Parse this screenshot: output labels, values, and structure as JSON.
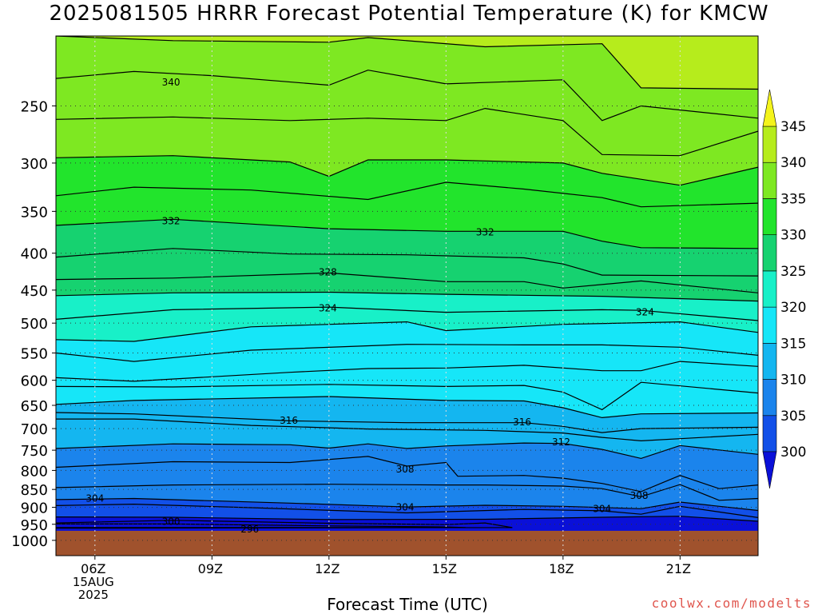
{
  "title": "2025081505 HRRR Forecast Potential Temperature (K) for KMCW",
  "xlabel": "Forecast Time (UTC)",
  "credit": "coolwx.com/modelts",
  "chart_data": {
    "type": "contour",
    "title": "2025081505 HRRR Forecast Potential Temperature (K) for KMCW",
    "xlabel": "Forecast Time (UTC)",
    "ylabel": "",
    "x_ticks": [
      {
        "hour": 6,
        "lines": [
          "06Z",
          "15AUG",
          "2025"
        ]
      },
      {
        "hour": 9,
        "lines": [
          "09Z"
        ]
      },
      {
        "hour": 12,
        "lines": [
          "12Z"
        ]
      },
      {
        "hour": 15,
        "lines": [
          "15Z"
        ]
      },
      {
        "hour": 18,
        "lines": [
          "18Z"
        ]
      },
      {
        "hour": 21,
        "lines": [
          "21Z"
        ]
      }
    ],
    "xlim": [
      5,
      23
    ],
    "y_ticks": [
      250,
      300,
      350,
      400,
      450,
      500,
      550,
      600,
      650,
      700,
      750,
      800,
      850,
      900,
      950,
      1000
    ],
    "ylim": [
      1050,
      200
    ],
    "y_scale": "log-pressure",
    "ground_level": 970,
    "colorbar": {
      "levels": [
        300,
        305,
        310,
        315,
        320,
        325,
        330,
        335,
        340,
        345
      ],
      "colors": [
        "#0a10d8",
        "#1250e8",
        "#1b84ec",
        "#14b6f0",
        "#16e6f8",
        "#18f0c8",
        "#16d270",
        "#22e42c",
        "#7ee822",
        "#b6ec1c",
        "#f4f41c"
      ]
    },
    "ground_color": "#a0522d",
    "contour_labels": [
      {
        "text": "340",
        "hour": 7.95,
        "pressure": 232
      },
      {
        "text": "332",
        "hour": 7.95,
        "pressure": 361
      },
      {
        "text": "332",
        "hour": 16.0,
        "pressure": 374
      },
      {
        "text": "328",
        "hour": 11.97,
        "pressure": 425
      },
      {
        "text": "324",
        "hour": 11.97,
        "pressure": 477
      },
      {
        "text": "324",
        "hour": 20.1,
        "pressure": 483
      },
      {
        "text": "316",
        "hour": 10.97,
        "pressure": 682
      },
      {
        "text": "316",
        "hour": 16.95,
        "pressure": 686
      },
      {
        "text": "312",
        "hour": 17.95,
        "pressure": 731
      },
      {
        "text": "308",
        "hour": 13.95,
        "pressure": 797
      },
      {
        "text": "308",
        "hour": 19.95,
        "pressure": 867
      },
      {
        "text": "304",
        "hour": 6.0,
        "pressure": 875
      },
      {
        "text": "304",
        "hour": 13.95,
        "pressure": 900
      },
      {
        "text": "304",
        "hour": 19.0,
        "pressure": 905
      },
      {
        "text": "300",
        "hour": 7.95,
        "pressure": 942
      },
      {
        "text": "296",
        "hour": 9.97,
        "pressure": 965
      }
    ],
    "series": [
      {
        "value": 342,
        "pts": [
          [
            5,
            200
          ],
          [
            8,
            203
          ],
          [
            12,
            204
          ],
          [
            13,
            201
          ],
          [
            16,
            207
          ],
          [
            19,
            205
          ],
          [
            20,
            236
          ],
          [
            23,
            237
          ]
        ]
      },
      {
        "value": 340,
        "pts": [
          [
            5,
            229
          ],
          [
            7,
            224
          ],
          [
            9,
            227
          ],
          [
            12,
            234
          ],
          [
            13,
            223
          ],
          [
            15,
            233
          ],
          [
            18,
            230
          ],
          [
            19,
            262
          ],
          [
            20,
            250
          ],
          [
            23,
            260
          ]
        ]
      },
      {
        "value": 338,
        "pts": [
          [
            5,
            261
          ],
          [
            8,
            259
          ],
          [
            11,
            262
          ],
          [
            13,
            260
          ],
          [
            15,
            262
          ],
          [
            16,
            252
          ],
          [
            18,
            262
          ],
          [
            19,
            292
          ],
          [
            21,
            293
          ],
          [
            23,
            271
          ]
        ]
      },
      {
        "value": 336,
        "pts": [
          [
            5,
            295
          ],
          [
            8,
            293
          ],
          [
            11,
            299
          ],
          [
            12,
            313
          ],
          [
            13,
            297
          ],
          [
            15,
            297
          ],
          [
            18,
            300
          ],
          [
            19,
            310
          ],
          [
            21,
            322
          ],
          [
            23,
            304
          ]
        ]
      },
      {
        "value": 334,
        "pts": [
          [
            5,
            333
          ],
          [
            7,
            324
          ],
          [
            10,
            327
          ],
          [
            13,
            337
          ],
          [
            15,
            319
          ],
          [
            17,
            326
          ],
          [
            19,
            335
          ],
          [
            20,
            345
          ],
          [
            23,
            341
          ]
        ]
      },
      {
        "value": 332,
        "pts": [
          [
            5,
            366
          ],
          [
            8,
            359
          ],
          [
            12,
            370
          ],
          [
            15,
            373
          ],
          [
            18,
            373
          ],
          [
            19,
            385
          ],
          [
            20,
            393
          ],
          [
            23,
            394
          ]
        ]
      },
      {
        "value": 330,
        "pts": [
          [
            5,
            405
          ],
          [
            8,
            394
          ],
          [
            11,
            401
          ],
          [
            14,
            402
          ],
          [
            17,
            406
          ],
          [
            18,
            414
          ],
          [
            19,
            429
          ],
          [
            23,
            430
          ]
        ]
      },
      {
        "value": 328,
        "pts": [
          [
            5,
            435
          ],
          [
            8,
            433
          ],
          [
            12,
            426
          ],
          [
            15,
            438
          ],
          [
            17,
            438
          ],
          [
            18,
            447
          ],
          [
            20,
            437
          ],
          [
            23,
            454
          ]
        ]
      },
      {
        "value": 326,
        "pts": [
          [
            5,
            458
          ],
          [
            8,
            454
          ],
          [
            12,
            453
          ],
          [
            15,
            456
          ],
          [
            19,
            459
          ],
          [
            23,
            466
          ]
        ]
      },
      {
        "value": 324,
        "pts": [
          [
            5,
            494
          ],
          [
            8,
            479
          ],
          [
            12,
            475
          ],
          [
            15,
            483
          ],
          [
            19,
            479
          ],
          [
            20,
            480
          ],
          [
            23,
            496
          ]
        ]
      },
      {
        "value": 322,
        "pts": [
          [
            5,
            527
          ],
          [
            7,
            530
          ],
          [
            10,
            506
          ],
          [
            14,
            498
          ],
          [
            15,
            512
          ],
          [
            18,
            502
          ],
          [
            21,
            498
          ],
          [
            23,
            515
          ]
        ]
      },
      {
        "value": 320,
        "pts": [
          [
            5,
            550
          ],
          [
            7,
            565
          ],
          [
            10,
            545
          ],
          [
            14,
            535
          ],
          [
            17,
            536
          ],
          [
            19,
            536
          ],
          [
            21,
            540
          ],
          [
            23,
            554
          ]
        ]
      },
      {
        "value": 318,
        "pts": [
          [
            5,
            595
          ],
          [
            7,
            602
          ],
          [
            11,
            585
          ],
          [
            13,
            578
          ],
          [
            15,
            577
          ],
          [
            17,
            572
          ],
          [
            19,
            582
          ],
          [
            20,
            582
          ],
          [
            21,
            565
          ],
          [
            23,
            574
          ]
        ]
      },
      {
        "value": 318.5,
        "pts": [
          [
            5,
            612
          ],
          [
            8,
            613
          ],
          [
            12,
            608
          ],
          [
            15,
            612
          ],
          [
            17,
            610
          ],
          [
            18,
            623
          ],
          [
            19,
            659
          ],
          [
            20,
            604
          ],
          [
            23,
            625
          ]
        ]
      },
      {
        "value": 317,
        "pts": [
          [
            5,
            648
          ],
          [
            7,
            640
          ],
          [
            12,
            632
          ],
          [
            15,
            640
          ],
          [
            17,
            641
          ],
          [
            18,
            655
          ],
          [
            19,
            676
          ],
          [
            20,
            668
          ],
          [
            23,
            666
          ]
        ]
      },
      {
        "value": 316,
        "pts": [
          [
            5,
            665
          ],
          [
            7,
            668
          ],
          [
            11,
            683
          ],
          [
            14,
            687
          ],
          [
            17,
            687
          ],
          [
            18,
            695
          ],
          [
            19,
            709
          ],
          [
            20,
            700
          ],
          [
            23,
            697
          ]
        ]
      },
      {
        "value": 314,
        "pts": [
          [
            5,
            679
          ],
          [
            7,
            679
          ],
          [
            10,
            693
          ],
          [
            13,
            701
          ],
          [
            16,
            704
          ],
          [
            18,
            710
          ],
          [
            19,
            720
          ],
          [
            20,
            728
          ],
          [
            23,
            713
          ]
        ]
      },
      {
        "value": 312,
        "pts": [
          [
            5,
            746
          ],
          [
            8,
            735
          ],
          [
            11,
            737
          ],
          [
            12,
            745
          ],
          [
            13,
            735
          ],
          [
            14,
            746
          ],
          [
            15,
            740
          ],
          [
            17,
            733
          ],
          [
            18,
            734
          ],
          [
            19,
            748
          ],
          [
            20,
            770
          ],
          [
            21,
            739
          ],
          [
            23,
            760
          ]
        ]
      },
      {
        "value": 310,
        "pts": [
          [
            5,
            792
          ],
          [
            8,
            778
          ],
          [
            11,
            780
          ],
          [
            13,
            765
          ],
          [
            14,
            789
          ],
          [
            15,
            780
          ],
          [
            15.3,
            815
          ],
          [
            17,
            813
          ],
          [
            18,
            820
          ],
          [
            19,
            834
          ],
          [
            20,
            856
          ],
          [
            21,
            813
          ],
          [
            22,
            848
          ],
          [
            23,
            838
          ]
        ]
      },
      {
        "value": 308,
        "pts": [
          [
            5,
            845
          ],
          [
            8,
            838
          ],
          [
            12,
            836
          ],
          [
            15,
            838
          ],
          [
            16,
            838
          ],
          [
            18,
            841
          ],
          [
            19,
            848
          ],
          [
            20,
            870
          ],
          [
            21,
            837
          ],
          [
            22,
            880
          ],
          [
            23,
            875
          ]
        ]
      },
      {
        "value": 306,
        "pts": [
          [
            5,
            878
          ],
          [
            7,
            875
          ],
          [
            11,
            888
          ],
          [
            14,
            899
          ],
          [
            16,
            894
          ],
          [
            18,
            897
          ],
          [
            20,
            904
          ],
          [
            21,
            885
          ],
          [
            23,
            909
          ]
        ]
      },
      {
        "value": 304,
        "pts": [
          [
            5,
            895
          ],
          [
            7,
            891
          ],
          [
            10,
            901
          ],
          [
            14,
            916
          ],
          [
            17,
            906
          ],
          [
            19,
            910
          ],
          [
            20,
            920
          ],
          [
            21,
            897
          ],
          [
            23,
            930
          ]
        ]
      },
      {
        "value": 302,
        "pts": [
          [
            5,
            928
          ],
          [
            8,
            929
          ],
          [
            12,
            936
          ],
          [
            16,
            935
          ],
          [
            19,
            929
          ],
          [
            21,
            926
          ],
          [
            23,
            941
          ]
        ]
      },
      {
        "value": 301,
        "pts": [
          [
            5,
            946
          ],
          [
            8,
            938
          ],
          [
            12,
            947
          ],
          [
            15,
            951
          ],
          [
            16,
            946
          ],
          [
            16.7,
            960
          ],
          [
            5,
            962
          ]
        ]
      },
      {
        "value": 300,
        "pts": [
          [
            5,
            949
          ],
          [
            8,
            949
          ],
          [
            12,
            955
          ],
          [
            15,
            958
          ],
          [
            15.5,
            960
          ],
          [
            5,
            960
          ]
        ]
      }
    ]
  }
}
